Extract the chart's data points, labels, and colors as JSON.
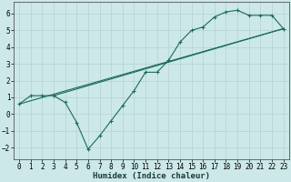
{
  "xlabel": "Humidex (Indice chaleur)",
  "bg_color": "#cce8e8",
  "grid_color": "#b8d4d4",
  "line_color": "#1a6b5a",
  "xlim": [
    -0.5,
    23.5
  ],
  "ylim": [
    -2.7,
    6.7
  ],
  "xticks": [
    0,
    1,
    2,
    3,
    4,
    5,
    6,
    7,
    8,
    9,
    10,
    11,
    12,
    13,
    14,
    15,
    16,
    17,
    18,
    19,
    20,
    21,
    22,
    23
  ],
  "yticks": [
    -2,
    -1,
    0,
    1,
    2,
    3,
    4,
    5,
    6
  ],
  "line1_x": [
    0,
    1,
    2,
    3,
    4,
    5,
    6,
    7,
    8,
    9,
    10,
    11,
    12,
    13,
    14,
    15,
    16,
    17,
    18,
    19,
    20,
    21,
    22,
    23
  ],
  "line1_y": [
    0.6,
    1.1,
    1.1,
    1.1,
    0.7,
    -0.5,
    -2.1,
    -1.3,
    -0.4,
    0.5,
    1.4,
    2.5,
    2.5,
    3.2,
    4.3,
    5.0,
    5.2,
    5.8,
    6.1,
    6.2,
    5.9,
    5.9,
    5.9,
    5.1
  ],
  "line2_x": [
    0,
    23
  ],
  "line2_y": [
    0.6,
    5.1
  ],
  "line3_x": [
    3,
    23
  ],
  "line3_y": [
    1.1,
    5.1
  ],
  "markersize": 2.5,
  "linewidth": 0.8,
  "tick_fontsize": 5.5,
  "xlabel_fontsize": 6.5
}
